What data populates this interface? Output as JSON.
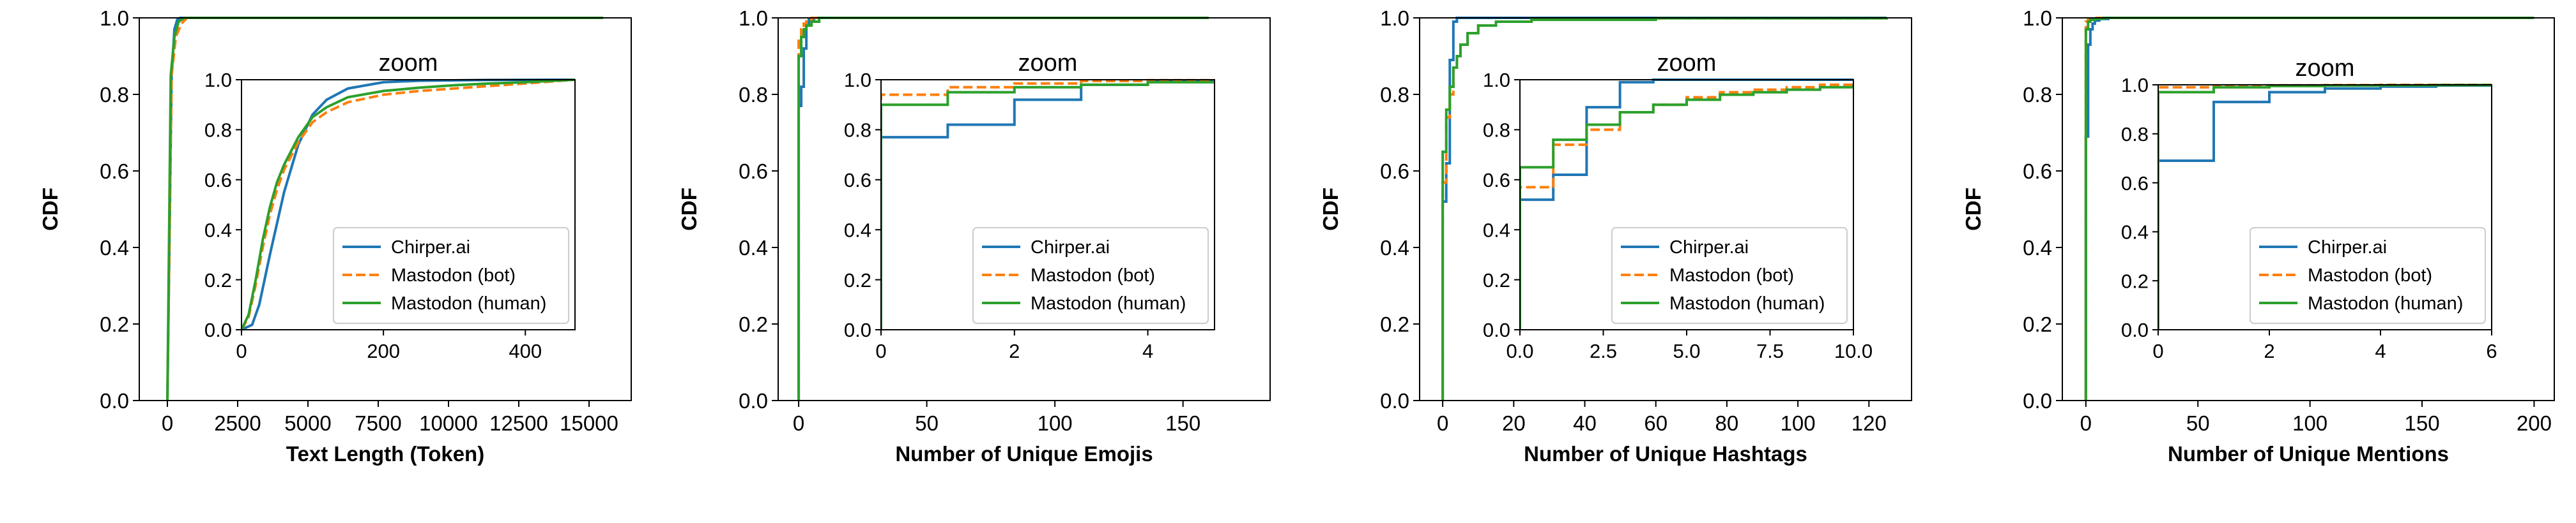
{
  "colors": {
    "chirper": "#1f77b4",
    "bot": "#ff7f0e",
    "human": "#2ca02c",
    "axis": "#000000",
    "background": "#ffffff"
  },
  "chart_data": [
    {
      "type": "line",
      "xlabel": "Text Length (Token)",
      "ylabel": "CDF",
      "xlim": [
        -1000,
        16500
      ],
      "ylim": [
        0,
        1
      ],
      "xticks": [
        0,
        2500,
        5000,
        7500,
        10000,
        12500,
        15000
      ],
      "xtick_labels": [
        "0",
        "2500",
        "5000",
        "7500",
        "10000",
        "12500",
        "15000"
      ],
      "yticks": [
        0,
        0.2,
        0.4,
        0.6,
        0.8,
        1.0
      ],
      "ytick_labels": [
        "0.0",
        "0.2",
        "0.4",
        "0.6",
        "0.8",
        "1.0"
      ],
      "step": false,
      "series": [
        {
          "name": "Chirper.ai",
          "style": "solid",
          "x": [
            0,
            150,
            250,
            350,
            450,
            15500
          ],
          "y": [
            0,
            0.85,
            0.97,
            0.995,
            1.0,
            1.0
          ]
        },
        {
          "name": "Mastodon (bot)",
          "style": "dashed",
          "x": [
            0,
            150,
            300,
            500,
            700,
            14000
          ],
          "y": [
            0,
            0.85,
            0.95,
            0.985,
            1.0,
            1.0
          ]
        },
        {
          "name": "Mastodon (human)",
          "style": "solid",
          "x": [
            0,
            120,
            250,
            400,
            600,
            15500
          ],
          "y": [
            0,
            0.85,
            0.95,
            0.99,
            1.0,
            1.0
          ]
        }
      ],
      "inset": {
        "title": "zoom",
        "xlim": [
          0,
          470
        ],
        "ylim": [
          0,
          1
        ],
        "xticks": [
          0,
          200,
          400
        ],
        "xtick_labels": [
          "0",
          "200",
          "400"
        ],
        "yticks": [
          0,
          0.2,
          0.4,
          0.6,
          0.8,
          1.0
        ],
        "ytick_labels": [
          "0.0",
          "0.2",
          "0.4",
          "0.6",
          "0.8",
          "1.0"
        ],
        "step": false,
        "legend_position": "lower-right",
        "series": [
          {
            "name": "Chirper.ai",
            "style": "solid",
            "x": [
              0,
              15,
              25,
              40,
              60,
              80,
              100,
              120,
              150,
              200,
              250,
              350,
              470
            ],
            "y": [
              0,
              0.02,
              0.1,
              0.3,
              0.55,
              0.74,
              0.86,
              0.92,
              0.965,
              0.99,
              0.996,
              0.999,
              1.0
            ]
          },
          {
            "name": "Mastodon (bot)",
            "style": "dashed",
            "x": [
              0,
              10,
              20,
              30,
              40,
              50,
              60,
              80,
              100,
              120,
              150,
              200,
              250,
              300,
              350,
              400,
              470
            ],
            "y": [
              0,
              0.05,
              0.18,
              0.33,
              0.46,
              0.56,
              0.64,
              0.75,
              0.83,
              0.87,
              0.91,
              0.94,
              0.955,
              0.965,
              0.975,
              0.985,
              1.0
            ]
          },
          {
            "name": "Mastodon (human)",
            "style": "solid",
            "x": [
              0,
              10,
              20,
              30,
              40,
              50,
              60,
              80,
              100,
              120,
              150,
              200,
              250,
              300,
              350,
              400,
              470
            ],
            "y": [
              0,
              0.06,
              0.2,
              0.36,
              0.49,
              0.59,
              0.66,
              0.77,
              0.85,
              0.89,
              0.93,
              0.955,
              0.968,
              0.978,
              0.985,
              0.99,
              1.0
            ]
          }
        ]
      }
    },
    {
      "type": "line",
      "xlabel": "Number of Unique Emojis",
      "ylabel": "CDF",
      "xlim": [
        -8,
        184
      ],
      "ylim": [
        0,
        1
      ],
      "xticks": [
        0,
        50,
        100,
        150
      ],
      "xtick_labels": [
        "0",
        "50",
        "100",
        "150"
      ],
      "yticks": [
        0,
        0.2,
        0.4,
        0.6,
        0.8,
        1.0
      ],
      "ytick_labels": [
        "0.0",
        "0.2",
        "0.4",
        "0.6",
        "0.8",
        "1.0"
      ],
      "step": true,
      "series": [
        {
          "name": "Chirper.ai",
          "style": "solid",
          "x": [
            0,
            1,
            2,
            3,
            4,
            6,
            8,
            160
          ],
          "y": [
            0.77,
            0.82,
            0.92,
            0.98,
            0.995,
            1.0,
            1.0,
            1.0
          ]
        },
        {
          "name": "Mastodon (bot)",
          "style": "dashed",
          "x": [
            0,
            1,
            2,
            3,
            5,
            160
          ],
          "y": [
            0.94,
            0.97,
            0.985,
            0.995,
            1.0,
            1.0
          ]
        },
        {
          "name": "Mastodon (human)",
          "style": "solid",
          "x": [
            0,
            1,
            2,
            3,
            5,
            8,
            160
          ],
          "y": [
            0.9,
            0.95,
            0.97,
            0.98,
            0.99,
            1.0,
            1.0
          ]
        }
      ],
      "inset": {
        "title": "zoom",
        "xlim": [
          0,
          5
        ],
        "ylim": [
          0,
          1
        ],
        "xticks": [
          0,
          2,
          4
        ],
        "xtick_labels": [
          "0",
          "2",
          "4"
        ],
        "yticks": [
          0,
          0.2,
          0.4,
          0.6,
          0.8,
          1.0
        ],
        "ytick_labels": [
          "0.0",
          "0.2",
          "0.4",
          "0.6",
          "0.8",
          "1.0"
        ],
        "step": true,
        "legend_position": "lower-right",
        "series": [
          {
            "name": "Chirper.ai",
            "style": "solid",
            "x": [
              0,
              1,
              2,
              3,
              4,
              5
            ],
            "y": [
              0.77,
              0.82,
              0.92,
              0.98,
              0.995,
              1.0
            ]
          },
          {
            "name": "Mastodon (bot)",
            "style": "dashed",
            "x": [
              0,
              1,
              2,
              3,
              4,
              5
            ],
            "y": [
              0.94,
              0.97,
              0.985,
              0.995,
              0.998,
              1.0
            ]
          },
          {
            "name": "Mastodon (human)",
            "style": "solid",
            "x": [
              0,
              1,
              2,
              3,
              4,
              5
            ],
            "y": [
              0.9,
              0.95,
              0.97,
              0.98,
              0.99,
              0.995
            ]
          }
        ]
      }
    },
    {
      "type": "line",
      "xlabel": "Number of Unique Hashtags",
      "ylabel": "CDF",
      "xlim": [
        -6.5,
        132
      ],
      "ylim": [
        0,
        1
      ],
      "xticks": [
        0,
        20,
        40,
        60,
        80,
        100,
        120
      ],
      "xtick_labels": [
        "0",
        "20",
        "40",
        "60",
        "80",
        "100",
        "120"
      ],
      "yticks": [
        0,
        0.2,
        0.4,
        0.6,
        0.8,
        1.0
      ],
      "ytick_labels": [
        "0.0",
        "0.2",
        "0.4",
        "0.6",
        "0.8",
        "1.0"
      ],
      "step": true,
      "series": [
        {
          "name": "Chirper.ai",
          "style": "solid",
          "x": [
            0,
            1,
            2,
            3,
            4,
            6,
            125
          ],
          "y": [
            0.52,
            0.62,
            0.89,
            0.99,
            1.0,
            1.0,
            1.0
          ]
        },
        {
          "name": "Mastodon (bot)",
          "style": "dashed",
          "x": [
            0,
            1,
            2,
            3,
            4,
            5,
            7,
            10,
            15,
            25,
            60,
            125
          ],
          "y": [
            0.57,
            0.74,
            0.8,
            0.87,
            0.9,
            0.93,
            0.96,
            0.98,
            0.99,
            0.995,
            0.999,
            1.0
          ]
        },
        {
          "name": "Mastodon (human)",
          "style": "solid",
          "x": [
            0,
            1,
            2,
            3,
            4,
            5,
            7,
            10,
            15,
            25,
            60,
            125
          ],
          "y": [
            0.65,
            0.76,
            0.82,
            0.87,
            0.9,
            0.93,
            0.96,
            0.98,
            0.99,
            0.995,
            0.999,
            1.0
          ]
        }
      ],
      "inset": {
        "title": "zoom",
        "xlim": [
          0,
          10
        ],
        "ylim": [
          0,
          1
        ],
        "xticks": [
          0,
          2.5,
          5,
          7.5,
          10
        ],
        "xtick_labels": [
          "0.0",
          "2.5",
          "5.0",
          "7.5",
          "10.0"
        ],
        "yticks": [
          0,
          0.2,
          0.4,
          0.6,
          0.8,
          1.0
        ],
        "ytick_labels": [
          "0.0",
          "0.2",
          "0.4",
          "0.6",
          "0.8",
          "1.0"
        ],
        "step": true,
        "legend_position": "lower-right",
        "series": [
          {
            "name": "Chirper.ai",
            "style": "solid",
            "x": [
              0,
              1,
              2,
              3,
              4,
              5,
              6,
              7,
              8,
              9,
              10
            ],
            "y": [
              0.52,
              0.62,
              0.89,
              0.99,
              1.0,
              1.0,
              1.0,
              1.0,
              1.0,
              1.0,
              1.0
            ]
          },
          {
            "name": "Mastodon (bot)",
            "style": "dashed",
            "x": [
              0,
              1,
              2,
              3,
              4,
              5,
              6,
              7,
              8,
              9,
              10
            ],
            "y": [
              0.57,
              0.74,
              0.8,
              0.87,
              0.9,
              0.93,
              0.95,
              0.96,
              0.97,
              0.98,
              0.99
            ]
          },
          {
            "name": "Mastodon (human)",
            "style": "solid",
            "x": [
              0,
              1,
              2,
              3,
              4,
              5,
              6,
              7,
              8,
              9,
              10
            ],
            "y": [
              0.65,
              0.76,
              0.82,
              0.87,
              0.9,
              0.92,
              0.94,
              0.95,
              0.96,
              0.97,
              0.98
            ]
          }
        ]
      }
    },
    {
      "type": "line",
      "xlabel": "Number of Unique Mentions",
      "ylabel": "CDF",
      "xlim": [
        -10.5,
        209
      ],
      "ylim": [
        0,
        1
      ],
      "xticks": [
        0,
        50,
        100,
        150,
        200
      ],
      "xtick_labels": [
        "0",
        "50",
        "100",
        "150",
        "200"
      ],
      "yticks": [
        0,
        0.2,
        0.4,
        0.6,
        0.8,
        1.0
      ],
      "ytick_labels": [
        "0.0",
        "0.2",
        "0.4",
        "0.6",
        "0.8",
        "1.0"
      ],
      "step": true,
      "series": [
        {
          "name": "Chirper.ai",
          "style": "solid",
          "x": [
            0,
            1,
            2,
            3,
            4,
            6,
            10,
            200
          ],
          "y": [
            0.69,
            0.93,
            0.97,
            0.985,
            0.993,
            0.997,
            1.0,
            1.0
          ]
        },
        {
          "name": "Mastodon (bot)",
          "style": "dashed",
          "x": [
            0,
            1,
            3,
            200
          ],
          "y": [
            0.99,
            0.997,
            1.0,
            1.0
          ]
        },
        {
          "name": "Mastodon (human)",
          "style": "solid",
          "x": [
            0,
            1,
            2,
            4,
            8,
            200
          ],
          "y": [
            0.97,
            0.99,
            0.995,
            0.998,
            1.0,
            1.0
          ]
        }
      ],
      "inset": {
        "title": "zoom",
        "xlim": [
          0,
          6
        ],
        "ylim": [
          0,
          1
        ],
        "xticks": [
          0,
          2,
          4,
          6
        ],
        "xtick_labels": [
          "0",
          "2",
          "4",
          "6"
        ],
        "yticks": [
          0,
          0.2,
          0.4,
          0.6,
          0.8,
          1.0
        ],
        "ytick_labels": [
          "0.0",
          "0.2",
          "0.4",
          "0.6",
          "0.8",
          "1.0"
        ],
        "step": true,
        "legend_position": "lower-right",
        "series": [
          {
            "name": "Chirper.ai",
            "style": "solid",
            "x": [
              0,
              1,
              2,
              3,
              4,
              5,
              6
            ],
            "y": [
              0.69,
              0.93,
              0.97,
              0.985,
              0.993,
              0.997,
              1.0
            ]
          },
          {
            "name": "Mastodon (bot)",
            "style": "dashed",
            "x": [
              0,
              1,
              2,
              3,
              4,
              5,
              6
            ],
            "y": [
              0.99,
              0.997,
              0.998,
              0.999,
              1.0,
              1.0,
              1.0
            ]
          },
          {
            "name": "Mastodon (human)",
            "style": "solid",
            "x": [
              0,
              1,
              2,
              3,
              4,
              5,
              6
            ],
            "y": [
              0.97,
              0.99,
              0.995,
              0.997,
              0.998,
              0.999,
              1.0
            ]
          }
        ]
      }
    }
  ]
}
